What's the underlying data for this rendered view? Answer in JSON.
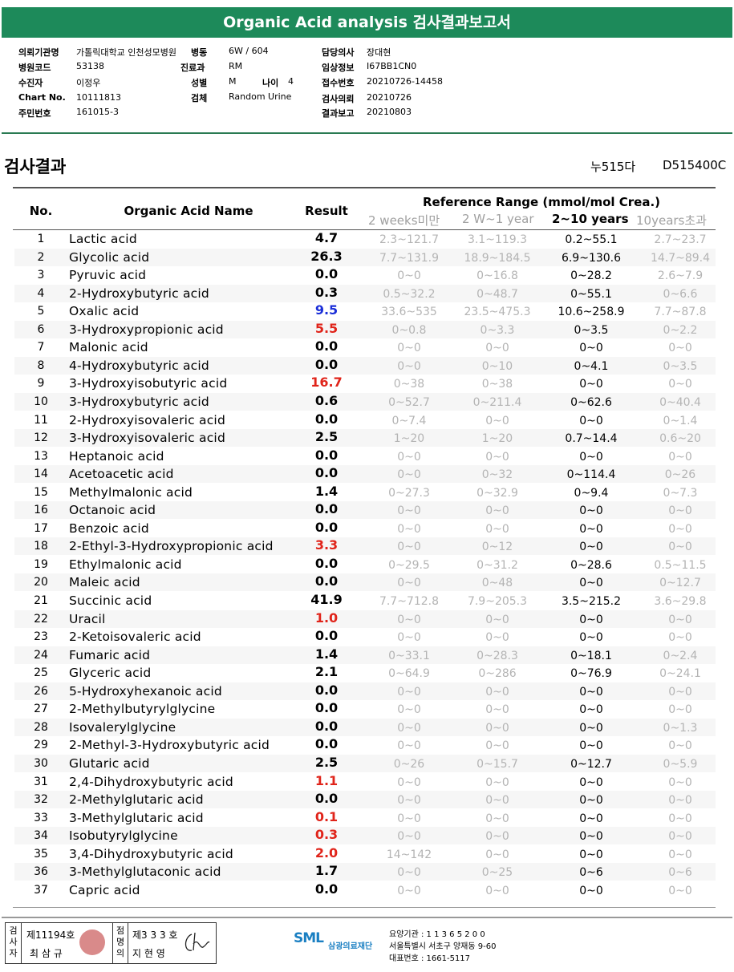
{
  "title": "Organic Acid analysis 검사결과보고서",
  "header": {
    "institution_label": "의뢰기관명",
    "institution": "가톨릭대학교 인천성모병원",
    "ward_label": "병동",
    "ward": "6W / 604",
    "doctor_label": "담당의사",
    "doctor": "장대현",
    "hospital_code_label": "병원코드",
    "hospital_code": "53138",
    "dept_label": "진료과",
    "dept": "RM",
    "clinical_label": "임상정보",
    "clinical": "I67BB1CN0",
    "recipient_label": "수진자",
    "recipient": "이정우",
    "sex_label": "성별",
    "sex": "M",
    "age_label": "나이",
    "age": "4",
    "accession_label": "접수번호",
    "accession": "20210726-14458",
    "chart_label": "Chart No.",
    "chart": "10111813",
    "specimen_label": "검체",
    "specimen": "Random Urine",
    "request_label": "검사의뢰",
    "request": "20210726",
    "id_label": "주민번호",
    "id": "161015-3",
    "report_label": "결과보고",
    "report": "20210803"
  },
  "section_title": "검사결과",
  "codes": {
    "code1": "누515다",
    "code2": "D515400C"
  },
  "table": {
    "col_no": "No.",
    "col_name": "Organic Acid Name",
    "col_result": "Result",
    "ref_header": "Reference Range (mmol/mol Crea.)",
    "ref_cols": [
      "2 weeks미만",
      "2 W~1 year",
      "2~10 years",
      "10years초과"
    ],
    "rows": [
      {
        "no": "1",
        "name": "Lactic acid",
        "result": "4.7",
        "flag": "",
        "r1": "2.3~121.7",
        "r2": "3.1~119.3",
        "r3": "0.2~55.1",
        "r4": "2.7~23.7"
      },
      {
        "no": "2",
        "name": "Glycolic acid",
        "result": "26.3",
        "flag": "",
        "r1": "7.7~131.9",
        "r2": "18.9~184.5",
        "r3": "6.9~130.6",
        "r4": "14.7~89.4"
      },
      {
        "no": "3",
        "name": "Pyruvic acid",
        "result": "0.0",
        "flag": "",
        "r1": "0~0",
        "r2": "0~16.8",
        "r3": "0~28.2",
        "r4": "2.6~7.9"
      },
      {
        "no": "4",
        "name": "2-Hydroxybutyric acid",
        "result": "0.3",
        "flag": "",
        "r1": "0.5~32.2",
        "r2": "0~48.7",
        "r3": "0~55.1",
        "r4": "0~6.6"
      },
      {
        "no": "5",
        "name": "Oxalic acid",
        "result": "9.5",
        "flag": "blue",
        "r1": "33.6~535",
        "r2": "23.5~475.3",
        "r3": "10.6~258.9",
        "r4": "7.7~87.8"
      },
      {
        "no": "6",
        "name": "3-Hydroxypropionic acid",
        "result": "5.5",
        "flag": "red",
        "r1": "0~0.8",
        "r2": "0~3.3",
        "r3": "0~3.5",
        "r4": "0~2.2"
      },
      {
        "no": "7",
        "name": "Malonic acid",
        "result": "0.0",
        "flag": "",
        "r1": "0~0",
        "r2": "0~0",
        "r3": "0~0",
        "r4": "0~0"
      },
      {
        "no": "8",
        "name": "4-Hydroxybutyric acid",
        "result": "0.0",
        "flag": "",
        "r1": "0~0",
        "r2": "0~10",
        "r3": "0~4.1",
        "r4": "0~3.5"
      },
      {
        "no": "9",
        "name": "3-Hydroxyisobutyric acid",
        "result": "16.7",
        "flag": "red",
        "r1": "0~38",
        "r2": "0~38",
        "r3": "0~0",
        "r4": "0~0"
      },
      {
        "no": "10",
        "name": "3-Hydroxybutyric acid",
        "result": "0.6",
        "flag": "",
        "r1": "0~52.7",
        "r2": "0~211.4",
        "r3": "0~62.6",
        "r4": "0~40.4"
      },
      {
        "no": "11",
        "name": "2-Hydroxyisovaleric acid",
        "result": "0.0",
        "flag": "",
        "r1": "0~7.4",
        "r2": "0~0",
        "r3": "0~0",
        "r4": "0~1.4"
      },
      {
        "no": "12",
        "name": "3-Hydroxyisovaleric acid",
        "result": "2.5",
        "flag": "",
        "r1": "1~20",
        "r2": "1~20",
        "r3": "0.7~14.4",
        "r4": "0.6~20"
      },
      {
        "no": "13",
        "name": "Heptanoic acid",
        "result": "0.0",
        "flag": "",
        "r1": "0~0",
        "r2": "0~0",
        "r3": "0~0",
        "r4": "0~0"
      },
      {
        "no": "14",
        "name": "Acetoacetic acid",
        "result": "0.0",
        "flag": "",
        "r1": "0~0",
        "r2": "0~32",
        "r3": "0~114.4",
        "r4": "0~26"
      },
      {
        "no": "15",
        "name": "Methylmalonic acid",
        "result": "1.4",
        "flag": "",
        "r1": "0~27.3",
        "r2": "0~32.9",
        "r3": "0~9.4",
        "r4": "0~7.3"
      },
      {
        "no": "16",
        "name": "Octanoic acid",
        "result": "0.0",
        "flag": "",
        "r1": "0~0",
        "r2": "0~0",
        "r3": "0~0",
        "r4": "0~0"
      },
      {
        "no": "17",
        "name": "Benzoic acid",
        "result": "0.0",
        "flag": "",
        "r1": "0~0",
        "r2": "0~0",
        "r3": "0~0",
        "r4": "0~0"
      },
      {
        "no": "18",
        "name": "2-Ethyl-3-Hydroxypropionic acid",
        "result": "3.3",
        "flag": "red",
        "r1": "0~0",
        "r2": "0~12",
        "r3": "0~0",
        "r4": "0~0"
      },
      {
        "no": "19",
        "name": "Ethylmalonic acid",
        "result": "0.0",
        "flag": "",
        "r1": "0~29.5",
        "r2": "0~31.2",
        "r3": "0~28.6",
        "r4": "0.5~11.5"
      },
      {
        "no": "20",
        "name": "Maleic acid",
        "result": "0.0",
        "flag": "",
        "r1": "0~0",
        "r2": "0~48",
        "r3": "0~0",
        "r4": "0~12.7"
      },
      {
        "no": "21",
        "name": "Succinic acid",
        "result": "41.9",
        "flag": "",
        "r1": "7.7~712.8",
        "r2": "7.9~205.3",
        "r3": "3.5~215.2",
        "r4": "3.6~29.8"
      },
      {
        "no": "22",
        "name": "Uracil",
        "result": "1.0",
        "flag": "red",
        "r1": "0~0",
        "r2": "0~0",
        "r3": "0~0",
        "r4": "0~0"
      },
      {
        "no": "23",
        "name": "2-Ketoisovaleric acid",
        "result": "0.0",
        "flag": "",
        "r1": "0~0",
        "r2": "0~0",
        "r3": "0~0",
        "r4": "0~0"
      },
      {
        "no": "24",
        "name": "Fumaric acid",
        "result": "1.4",
        "flag": "",
        "r1": "0~33.1",
        "r2": "0~28.3",
        "r3": "0~18.1",
        "r4": "0~2.4"
      },
      {
        "no": "25",
        "name": "Glyceric acid",
        "result": "2.1",
        "flag": "",
        "r1": "0~64.9",
        "r2": "0~286",
        "r3": "0~76.9",
        "r4": "0~24.1"
      },
      {
        "no": "26",
        "name": "5-Hydroxyhexanoic acid",
        "result": "0.0",
        "flag": "",
        "r1": "0~0",
        "r2": "0~0",
        "r3": "0~0",
        "r4": "0~0"
      },
      {
        "no": "27",
        "name": "2-Methylbutyrylglycine",
        "result": "0.0",
        "flag": "",
        "r1": "0~0",
        "r2": "0~0",
        "r3": "0~0",
        "r4": "0~0"
      },
      {
        "no": "28",
        "name": "Isovalerylglycine",
        "result": "0.0",
        "flag": "",
        "r1": "0~0",
        "r2": "0~0",
        "r3": "0~0",
        "r4": "0~1.3"
      },
      {
        "no": "29",
        "name": "2-Methyl-3-Hydroxybutyric acid",
        "result": "0.0",
        "flag": "",
        "r1": "0~0",
        "r2": "0~0",
        "r3": "0~0",
        "r4": "0~0"
      },
      {
        "no": "30",
        "name": "Glutaric acid",
        "result": "2.5",
        "flag": "",
        "r1": "0~26",
        "r2": "0~15.7",
        "r3": "0~12.7",
        "r4": "0~5.9"
      },
      {
        "no": "31",
        "name": "2,4-Dihydroxybutyric acid",
        "result": "1.1",
        "flag": "red",
        "r1": "0~0",
        "r2": "0~0",
        "r3": "0~0",
        "r4": "0~0"
      },
      {
        "no": "32",
        "name": "2-Methylglutaric acid",
        "result": "0.0",
        "flag": "",
        "r1": "0~0",
        "r2": "0~0",
        "r3": "0~0",
        "r4": "0~0"
      },
      {
        "no": "33",
        "name": "3-Methylglutaric acid",
        "result": "0.1",
        "flag": "red",
        "r1": "0~0",
        "r2": "0~0",
        "r3": "0~0",
        "r4": "0~0"
      },
      {
        "no": "34",
        "name": "Isobutyrylglycine",
        "result": "0.3",
        "flag": "red",
        "r1": "0~0",
        "r2": "0~0",
        "r3": "0~0",
        "r4": "0~0"
      },
      {
        "no": "35",
        "name": "3,4-Dihydroxybutyric acid",
        "result": "2.0",
        "flag": "red",
        "r1": "14~142",
        "r2": "0~0",
        "r3": "0~0",
        "r4": "0~0"
      },
      {
        "no": "36",
        "name": "3-Methylglutaconic acid",
        "result": "1.7",
        "flag": "",
        "r1": "0~0",
        "r2": "0~25",
        "r3": "0~6",
        "r4": "0~6"
      },
      {
        "no": "37",
        "name": "Capric acid",
        "result": "0.0",
        "flag": "",
        "r1": "0~0",
        "r2": "0~0",
        "r3": "0~0",
        "r4": "0~0"
      }
    ]
  },
  "footer": {
    "box_label_1": "검사자",
    "license_1": "제11194호",
    "name_1": "최 삼 규",
    "box_label_2": "점명의",
    "license_2": "제3 3 3 호",
    "name_2": "지 현 영",
    "org_logo": "SML",
    "org_name": "삼광의료재단",
    "care_code": "요양기관 : 1 1 3 6 5 2 0 0",
    "address": "서울특별시 서초구 양재동 9-60",
    "phone": "대표번호 : 1661-5117"
  },
  "colors": {
    "title_bg": "#1d8a5a",
    "red": "#e0241a",
    "blue": "#1a2ed8"
  }
}
